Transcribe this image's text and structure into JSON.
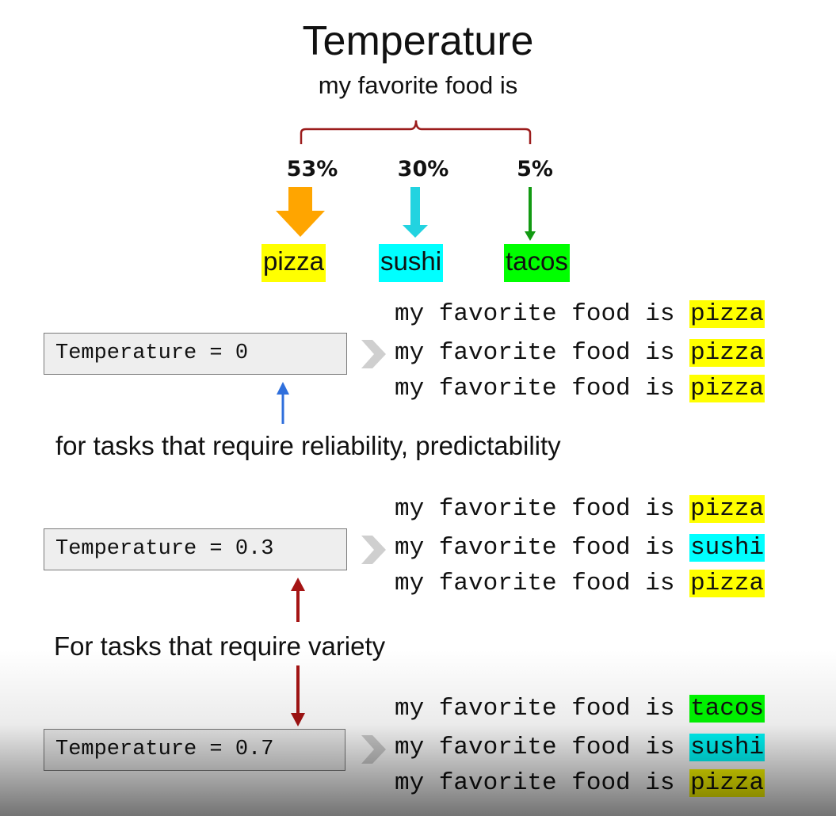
{
  "title": "Temperature",
  "prompt": "my favorite food is",
  "distribution": [
    {
      "percent": "53%",
      "label": "pizza",
      "color": "#ffa500",
      "highlight": "#ffff00"
    },
    {
      "percent": "30%",
      "label": "sushi",
      "color": "#22d3e0",
      "highlight": "#00ffff"
    },
    {
      "percent": "5%",
      "label": "tacos",
      "color": "#129a12",
      "highlight": "#00ff00"
    }
  ],
  "groups": [
    {
      "temperature": "Temperature = 0",
      "completions": [
        {
          "prefix": "my favorite food is ",
          "word": "pizza",
          "highlight": "#ffff00"
        },
        {
          "prefix": "my favorite food is ",
          "word": "pizza",
          "highlight": "#ffff00"
        },
        {
          "prefix": "my favorite food is ",
          "word": "pizza",
          "highlight": "#ffff00"
        }
      ]
    },
    {
      "temperature": "Temperature = 0.3",
      "completions": [
        {
          "prefix": "my favorite food is ",
          "word": "pizza",
          "highlight": "#ffff00"
        },
        {
          "prefix": "my favorite food is ",
          "word": "sushi",
          "highlight": "#00ffff"
        },
        {
          "prefix": "my favorite food is ",
          "word": "pizza",
          "highlight": "#ffff00"
        }
      ]
    },
    {
      "temperature": "Temperature = 0.7",
      "completions": [
        {
          "prefix": "my favorite food is ",
          "word": "tacos",
          "highlight": "#00ff00"
        },
        {
          "prefix": "my favorite food is ",
          "word": "sushi",
          "highlight": "#00ffff"
        },
        {
          "prefix": "my favorite food is ",
          "word": "pizza",
          "highlight": "#ffff00"
        }
      ]
    }
  ],
  "notes": {
    "reliability": "for tasks that require reliability, predictability",
    "variety": "For tasks that require variety"
  },
  "colors": {
    "bracket": "#9b1c1c",
    "blue_arrow": "#2f6fdc",
    "red_arrow": "#a51414",
    "chevron": "#cfcfcf"
  }
}
